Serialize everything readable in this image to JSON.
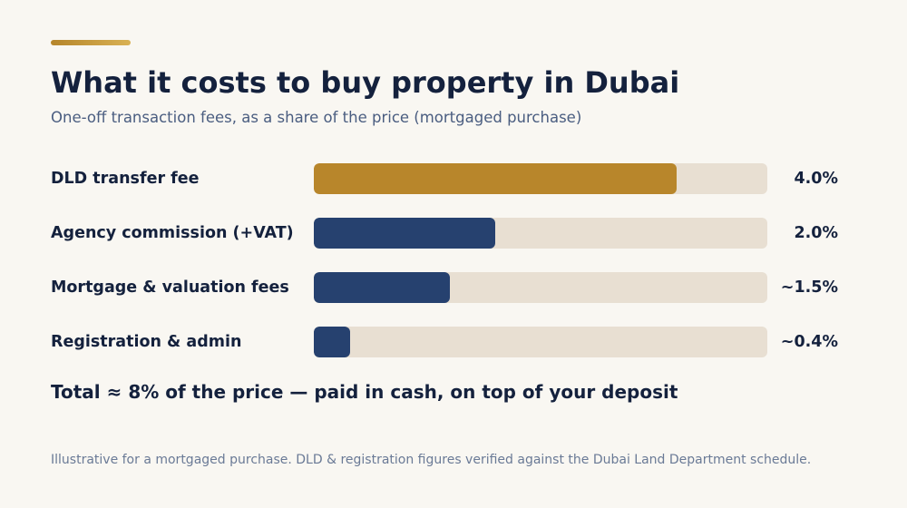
{
  "header": {
    "title": "What it costs to buy property in Dubai",
    "subtitle": "One-off transaction fees, as a share of the price (mortgaged purchase)"
  },
  "colors": {
    "accent": "#b5852a",
    "highlight_bar": "#b8862b",
    "bar": "#26416f",
    "track": "#e8dfd2",
    "background": "#f9f7f2"
  },
  "chart_data": {
    "type": "bar",
    "orientation": "horizontal",
    "title": "What it costs to buy property in Dubai",
    "subtitle": "One-off transaction fees, as a share of the price (mortgaged purchase)",
    "xlim": [
      0,
      5
    ],
    "grid": false,
    "categories": [
      "DLD transfer fee",
      "Agency commission (+VAT)",
      "Mortgage & valuation fees",
      "Registration & admin"
    ],
    "values": [
      4.0,
      2.0,
      1.5,
      0.4
    ],
    "value_labels": [
      "4.0%",
      "2.0%",
      "~1.5%",
      "~0.4%"
    ],
    "highlight_index": 0
  },
  "summary": {
    "total_text": "Total ≈ 8% of the price — paid in cash, on top of your deposit"
  },
  "footer": {
    "note": "Illustrative for a mortgaged purchase. DLD & registration figures verified against the Dubai Land Department schedule."
  }
}
